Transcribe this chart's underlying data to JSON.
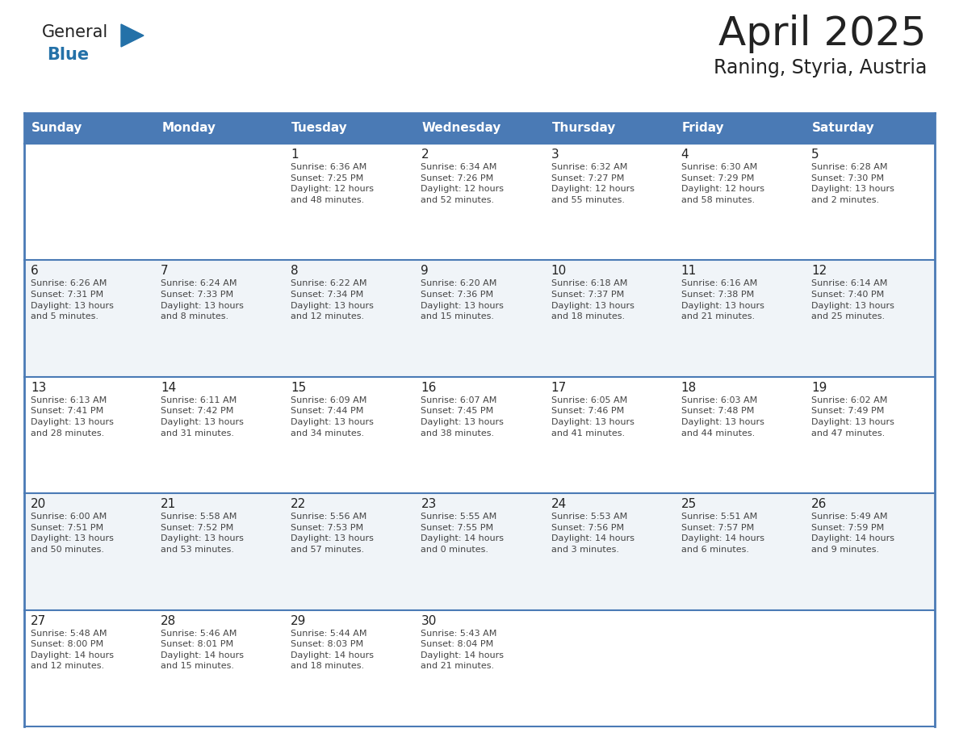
{
  "title": "April 2025",
  "subtitle": "Raning, Styria, Austria",
  "header_bg": "#4a7ab5",
  "header_text_color": "#ffffff",
  "days_of_week": [
    "Sunday",
    "Monday",
    "Tuesday",
    "Wednesday",
    "Thursday",
    "Friday",
    "Saturday"
  ],
  "cell_bg_even": "#ffffff",
  "cell_bg_odd": "#f0f4f8",
  "grid_line_color": "#4a7ab5",
  "text_color": "#333333",
  "logo_general_color": "#222222",
  "logo_blue_color": "#2471a8",
  "logo_triangle_color": "#2471a8",
  "title_color": "#222222",
  "calendar": [
    [
      {
        "day": "",
        "info": ""
      },
      {
        "day": "",
        "info": ""
      },
      {
        "day": "1",
        "info": "Sunrise: 6:36 AM\nSunset: 7:25 PM\nDaylight: 12 hours\nand 48 minutes."
      },
      {
        "day": "2",
        "info": "Sunrise: 6:34 AM\nSunset: 7:26 PM\nDaylight: 12 hours\nand 52 minutes."
      },
      {
        "day": "3",
        "info": "Sunrise: 6:32 AM\nSunset: 7:27 PM\nDaylight: 12 hours\nand 55 minutes."
      },
      {
        "day": "4",
        "info": "Sunrise: 6:30 AM\nSunset: 7:29 PM\nDaylight: 12 hours\nand 58 minutes."
      },
      {
        "day": "5",
        "info": "Sunrise: 6:28 AM\nSunset: 7:30 PM\nDaylight: 13 hours\nand 2 minutes."
      }
    ],
    [
      {
        "day": "6",
        "info": "Sunrise: 6:26 AM\nSunset: 7:31 PM\nDaylight: 13 hours\nand 5 minutes."
      },
      {
        "day": "7",
        "info": "Sunrise: 6:24 AM\nSunset: 7:33 PM\nDaylight: 13 hours\nand 8 minutes."
      },
      {
        "day": "8",
        "info": "Sunrise: 6:22 AM\nSunset: 7:34 PM\nDaylight: 13 hours\nand 12 minutes."
      },
      {
        "day": "9",
        "info": "Sunrise: 6:20 AM\nSunset: 7:36 PM\nDaylight: 13 hours\nand 15 minutes."
      },
      {
        "day": "10",
        "info": "Sunrise: 6:18 AM\nSunset: 7:37 PM\nDaylight: 13 hours\nand 18 minutes."
      },
      {
        "day": "11",
        "info": "Sunrise: 6:16 AM\nSunset: 7:38 PM\nDaylight: 13 hours\nand 21 minutes."
      },
      {
        "day": "12",
        "info": "Sunrise: 6:14 AM\nSunset: 7:40 PM\nDaylight: 13 hours\nand 25 minutes."
      }
    ],
    [
      {
        "day": "13",
        "info": "Sunrise: 6:13 AM\nSunset: 7:41 PM\nDaylight: 13 hours\nand 28 minutes."
      },
      {
        "day": "14",
        "info": "Sunrise: 6:11 AM\nSunset: 7:42 PM\nDaylight: 13 hours\nand 31 minutes."
      },
      {
        "day": "15",
        "info": "Sunrise: 6:09 AM\nSunset: 7:44 PM\nDaylight: 13 hours\nand 34 minutes."
      },
      {
        "day": "16",
        "info": "Sunrise: 6:07 AM\nSunset: 7:45 PM\nDaylight: 13 hours\nand 38 minutes."
      },
      {
        "day": "17",
        "info": "Sunrise: 6:05 AM\nSunset: 7:46 PM\nDaylight: 13 hours\nand 41 minutes."
      },
      {
        "day": "18",
        "info": "Sunrise: 6:03 AM\nSunset: 7:48 PM\nDaylight: 13 hours\nand 44 minutes."
      },
      {
        "day": "19",
        "info": "Sunrise: 6:02 AM\nSunset: 7:49 PM\nDaylight: 13 hours\nand 47 minutes."
      }
    ],
    [
      {
        "day": "20",
        "info": "Sunrise: 6:00 AM\nSunset: 7:51 PM\nDaylight: 13 hours\nand 50 minutes."
      },
      {
        "day": "21",
        "info": "Sunrise: 5:58 AM\nSunset: 7:52 PM\nDaylight: 13 hours\nand 53 minutes."
      },
      {
        "day": "22",
        "info": "Sunrise: 5:56 AM\nSunset: 7:53 PM\nDaylight: 13 hours\nand 57 minutes."
      },
      {
        "day": "23",
        "info": "Sunrise: 5:55 AM\nSunset: 7:55 PM\nDaylight: 14 hours\nand 0 minutes."
      },
      {
        "day": "24",
        "info": "Sunrise: 5:53 AM\nSunset: 7:56 PM\nDaylight: 14 hours\nand 3 minutes."
      },
      {
        "day": "25",
        "info": "Sunrise: 5:51 AM\nSunset: 7:57 PM\nDaylight: 14 hours\nand 6 minutes."
      },
      {
        "day": "26",
        "info": "Sunrise: 5:49 AM\nSunset: 7:59 PM\nDaylight: 14 hours\nand 9 minutes."
      }
    ],
    [
      {
        "day": "27",
        "info": "Sunrise: 5:48 AM\nSunset: 8:00 PM\nDaylight: 14 hours\nand 12 minutes."
      },
      {
        "day": "28",
        "info": "Sunrise: 5:46 AM\nSunset: 8:01 PM\nDaylight: 14 hours\nand 15 minutes."
      },
      {
        "day": "29",
        "info": "Sunrise: 5:44 AM\nSunset: 8:03 PM\nDaylight: 14 hours\nand 18 minutes."
      },
      {
        "day": "30",
        "info": "Sunrise: 5:43 AM\nSunset: 8:04 PM\nDaylight: 14 hours\nand 21 minutes."
      },
      {
        "day": "",
        "info": ""
      },
      {
        "day": "",
        "info": ""
      },
      {
        "day": "",
        "info": ""
      }
    ]
  ]
}
